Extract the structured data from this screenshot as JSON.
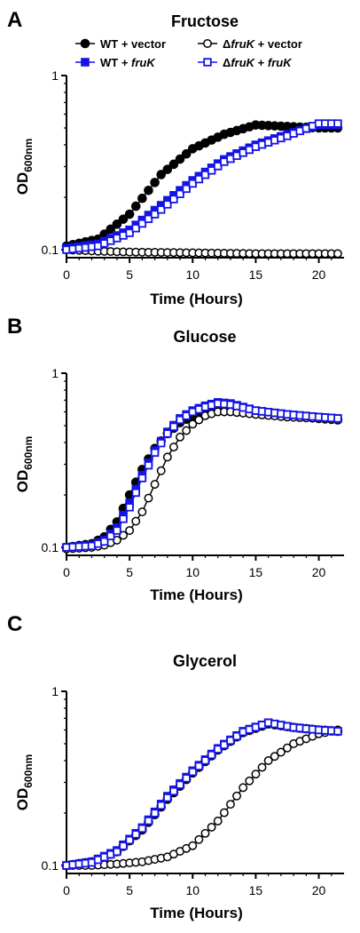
{
  "figure": {
    "legend": [
      {
        "id": "wt_vector",
        "prefix": "WT + vector",
        "italic": "",
        "suffix": ""
      },
      {
        "id": "dfruk_vector",
        "prefix": "Δ",
        "italic": "fruK",
        "suffix": " + vector"
      },
      {
        "id": "wt_fruk",
        "prefix": "WT + ",
        "italic": "fruK",
        "suffix": ""
      },
      {
        "id": "dfruk_fruk",
        "prefix": "Δ",
        "italic": "fruK",
        "suffix": " + fruK"
      }
    ],
    "colors": {
      "black": "#000000",
      "blue": "#1414e6"
    }
  },
  "chart_data": [
    {
      "type": "line",
      "letter": "A",
      "title": "Fructose",
      "xlabel": "Time (Hours)",
      "ylabel_main": "OD",
      "ylabel_sub": "600nm",
      "xlim": [
        0,
        22
      ],
      "ylim": [
        0.09,
        1
      ],
      "yscale": "log",
      "xticks": [
        "0",
        "5",
        "10",
        "15",
        "20"
      ],
      "yticks": [
        "0.1",
        "1"
      ],
      "series": [
        {
          "name": "WT + vector",
          "marker": "filled-circle",
          "color": "#000000",
          "x": [
            0,
            2.5,
            5,
            7.5,
            10,
            12.5,
            15,
            17.5,
            20,
            21.5
          ],
          "y": [
            0.105,
            0.115,
            0.16,
            0.27,
            0.38,
            0.46,
            0.52,
            0.51,
            0.5,
            0.5
          ]
        },
        {
          "name": "ΔfruK + vector",
          "marker": "open-circle",
          "color": "#000000",
          "x": [
            0,
            2.5,
            5,
            10,
            15,
            20,
            21.5
          ],
          "y": [
            0.1,
            0.098,
            0.097,
            0.096,
            0.095,
            0.095,
            0.095
          ]
        },
        {
          "name": "WT + fruK",
          "marker": "filled-square",
          "color": "#1414e6",
          "x": [
            0,
            2.5,
            5,
            7.5,
            10,
            12.5,
            15,
            17.5,
            20,
            21.5
          ],
          "y": [
            0.102,
            0.108,
            0.13,
            0.18,
            0.25,
            0.33,
            0.4,
            0.46,
            0.52,
            0.52
          ]
        },
        {
          "name": "ΔfruK + fruK",
          "marker": "open-square",
          "color": "#1414e6",
          "x": [
            0,
            2.5,
            5,
            7.5,
            10,
            12.5,
            15,
            17.5,
            20,
            21.5
          ],
          "y": [
            0.1,
            0.105,
            0.125,
            0.17,
            0.24,
            0.32,
            0.39,
            0.45,
            0.53,
            0.53
          ]
        }
      ]
    },
    {
      "type": "line",
      "letter": "B",
      "title": "Glucose",
      "xlabel": "Time (Hours)",
      "ylabel_main": "OD",
      "ylabel_sub": "600nm",
      "xlim": [
        0,
        22
      ],
      "ylim": [
        0.09,
        1
      ],
      "yscale": "log",
      "xticks": [
        "0",
        "5",
        "10",
        "15",
        "20"
      ],
      "yticks": [
        "0.1",
        "1"
      ],
      "series": [
        {
          "name": "WT + vector",
          "marker": "filled-circle",
          "color": "#000000",
          "x": [
            0,
            2,
            3,
            4,
            5,
            6,
            7,
            8,
            9,
            10,
            11,
            12,
            13,
            15,
            17.5,
            20,
            21.5
          ],
          "y": [
            0.1,
            0.105,
            0.115,
            0.14,
            0.2,
            0.28,
            0.37,
            0.45,
            0.52,
            0.57,
            0.61,
            0.63,
            0.63,
            0.6,
            0.57,
            0.55,
            0.54
          ]
        },
        {
          "name": "ΔfruK + vector",
          "marker": "open-circle",
          "color": "#000000",
          "x": [
            0,
            2,
            3,
            4,
            5,
            6,
            7,
            8,
            9,
            10,
            11,
            12,
            13,
            15,
            17.5,
            20,
            21.5
          ],
          "y": [
            0.098,
            0.1,
            0.103,
            0.11,
            0.125,
            0.16,
            0.23,
            0.33,
            0.43,
            0.51,
            0.57,
            0.6,
            0.6,
            0.58,
            0.56,
            0.55,
            0.54
          ]
        },
        {
          "name": "WT + fruK",
          "marker": "filled-square",
          "color": "#1414e6",
          "x": [
            0,
            2,
            3,
            4,
            5,
            6,
            7,
            8,
            9,
            10,
            11,
            12,
            13,
            15,
            17.5,
            20,
            21.5
          ],
          "y": [
            0.1,
            0.103,
            0.11,
            0.13,
            0.18,
            0.26,
            0.36,
            0.46,
            0.55,
            0.61,
            0.65,
            0.68,
            0.67,
            0.61,
            0.58,
            0.56,
            0.55
          ]
        },
        {
          "name": "ΔfruK + fruK",
          "marker": "open-square",
          "color": "#1414e6",
          "x": [
            0,
            2,
            3,
            4,
            5,
            6,
            7,
            8,
            9,
            10,
            11,
            12,
            13,
            15,
            17.5,
            20,
            21.5
          ],
          "y": [
            0.1,
            0.102,
            0.108,
            0.125,
            0.17,
            0.25,
            0.35,
            0.45,
            0.54,
            0.6,
            0.64,
            0.67,
            0.66,
            0.61,
            0.58,
            0.56,
            0.55
          ]
        }
      ]
    },
    {
      "type": "line",
      "letter": "C",
      "title": "Glycerol",
      "xlabel": "Time (Hours)",
      "ylabel_main": "OD",
      "ylabel_sub": "600nm",
      "xlim": [
        0,
        22
      ],
      "ylim": [
        0.09,
        1
      ],
      "yscale": "log",
      "xticks": [
        "0",
        "5",
        "10",
        "15",
        "20"
      ],
      "yticks": [
        "0.1",
        "1"
      ],
      "series": [
        {
          "name": "WT + vector",
          "marker": "filled-circle",
          "color": "#000000",
          "x": [
            0,
            2,
            4,
            6,
            8,
            10,
            12,
            14,
            16,
            18,
            20,
            21.5
          ],
          "y": [
            0.1,
            0.105,
            0.12,
            0.16,
            0.24,
            0.34,
            0.46,
            0.58,
            0.65,
            0.62,
            0.6,
            0.59
          ]
        },
        {
          "name": "ΔfruK + vector",
          "marker": "open-circle",
          "color": "#000000",
          "x": [
            0,
            2,
            4,
            6,
            8,
            10,
            12,
            14,
            16,
            18,
            20,
            21.5
          ],
          "y": [
            0.1,
            0.1,
            0.102,
            0.105,
            0.112,
            0.13,
            0.18,
            0.28,
            0.4,
            0.5,
            0.57,
            0.6
          ]
        },
        {
          "name": "WT + fruK",
          "marker": "filled-square",
          "color": "#1414e6",
          "x": [
            0,
            2,
            4,
            6,
            8,
            10,
            12,
            14,
            16,
            18,
            20,
            21.5
          ],
          "y": [
            0.1,
            0.105,
            0.122,
            0.165,
            0.25,
            0.35,
            0.47,
            0.59,
            0.66,
            0.62,
            0.6,
            0.59
          ]
        },
        {
          "name": "ΔfruK + fruK",
          "marker": "open-square",
          "color": "#1414e6",
          "x": [
            0,
            2,
            4,
            6,
            8,
            10,
            12,
            14,
            16,
            18,
            20,
            21.5
          ],
          "y": [
            0.1,
            0.104,
            0.12,
            0.163,
            0.245,
            0.345,
            0.465,
            0.585,
            0.66,
            0.62,
            0.6,
            0.59
          ]
        }
      ]
    }
  ]
}
